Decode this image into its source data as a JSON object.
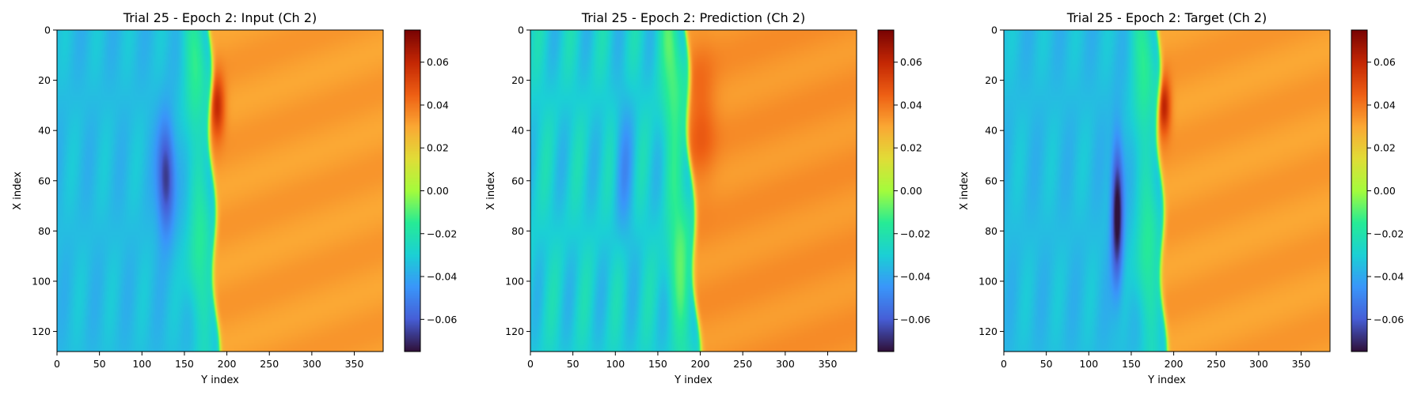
{
  "chart_data": [
    {
      "type": "heatmap",
      "title": "Trial 25 - Epoch 2: Input (Ch 2)",
      "xlabel": "Y index",
      "ylabel": "X index",
      "xlim": [
        0,
        384
      ],
      "ylim": [
        128,
        0
      ],
      "xticks": [
        "0",
        "50",
        "100",
        "150",
        "200",
        "250",
        "300",
        "350"
      ],
      "yticks": [
        "0",
        "20",
        "40",
        "60",
        "80",
        "100",
        "120"
      ],
      "colorbar": {
        "min": -0.075,
        "max": 0.075,
        "colormap": "turbo",
        "ticks": [
          "0.06",
          "0.04",
          "0.02",
          "0.00",
          "−0.02",
          "−0.04",
          "−0.06"
        ]
      },
      "field": {
        "background": -0.035,
        "plateau": 0.032,
        "front_y": 178,
        "front_shear": 0.08,
        "wave_amp": 0.004,
        "blob_neg": {
          "y": 128,
          "x": 58,
          "sy": 10,
          "sx": 22,
          "amp": -0.036
        },
        "blob_pos": {
          "y": 188,
          "x": 30,
          "sy": 9,
          "sx": 12,
          "amp": 0.03
        }
      }
    },
    {
      "type": "heatmap",
      "title": "Trial 25 - Epoch 2: Prediction (Ch 2)",
      "xlabel": "Y index",
      "ylabel": "X index",
      "xlim": [
        0,
        384
      ],
      "ylim": [
        128,
        0
      ],
      "xticks": [
        "0",
        "50",
        "100",
        "150",
        "200",
        "250",
        "300",
        "350"
      ],
      "yticks": [
        "0",
        "20",
        "40",
        "60",
        "80",
        "100",
        "120"
      ],
      "colorbar": {
        "min": -0.075,
        "max": 0.075,
        "colormap": "turbo",
        "ticks": [
          "0.06",
          "0.04",
          "0.02",
          "0.00",
          "−0.02",
          "−0.04",
          "−0.06"
        ]
      },
      "field": {
        "background": -0.03,
        "plateau": 0.034,
        "front_y": 182,
        "front_shear": 0.12,
        "wave_amp": 0.008,
        "blob_neg": {
          "y": 110,
          "x": 55,
          "sy": 12,
          "sx": 30,
          "amp": -0.012
        },
        "blob_pos": {
          "y": 200,
          "x": 35,
          "sy": 18,
          "sx": 25,
          "amp": 0.012
        }
      }
    },
    {
      "type": "heatmap",
      "title": "Trial 25 - Epoch 2: Target (Ch 2)",
      "xlabel": "Y index",
      "ylabel": "X index",
      "xlim": [
        0,
        384
      ],
      "ylim": [
        128,
        0
      ],
      "xticks": [
        "0",
        "50",
        "100",
        "150",
        "200",
        "250",
        "300",
        "350"
      ],
      "yticks": [
        "0",
        "20",
        "40",
        "60",
        "80",
        "100",
        "120"
      ],
      "colorbar": {
        "min": -0.075,
        "max": 0.075,
        "colormap": "turbo",
        "ticks": [
          "0.06",
          "0.04",
          "0.02",
          "0.00",
          "−0.02",
          "−0.04",
          "−0.06"
        ]
      },
      "field": {
        "background": -0.035,
        "plateau": 0.032,
        "front_y": 180,
        "front_shear": 0.07,
        "wave_amp": 0.004,
        "blob_neg": {
          "y": 133,
          "x": 72,
          "sy": 7,
          "sx": 28,
          "amp": -0.045
        },
        "blob_pos": {
          "y": 188,
          "x": 30,
          "sy": 8,
          "sx": 11,
          "amp": 0.032
        }
      }
    }
  ]
}
